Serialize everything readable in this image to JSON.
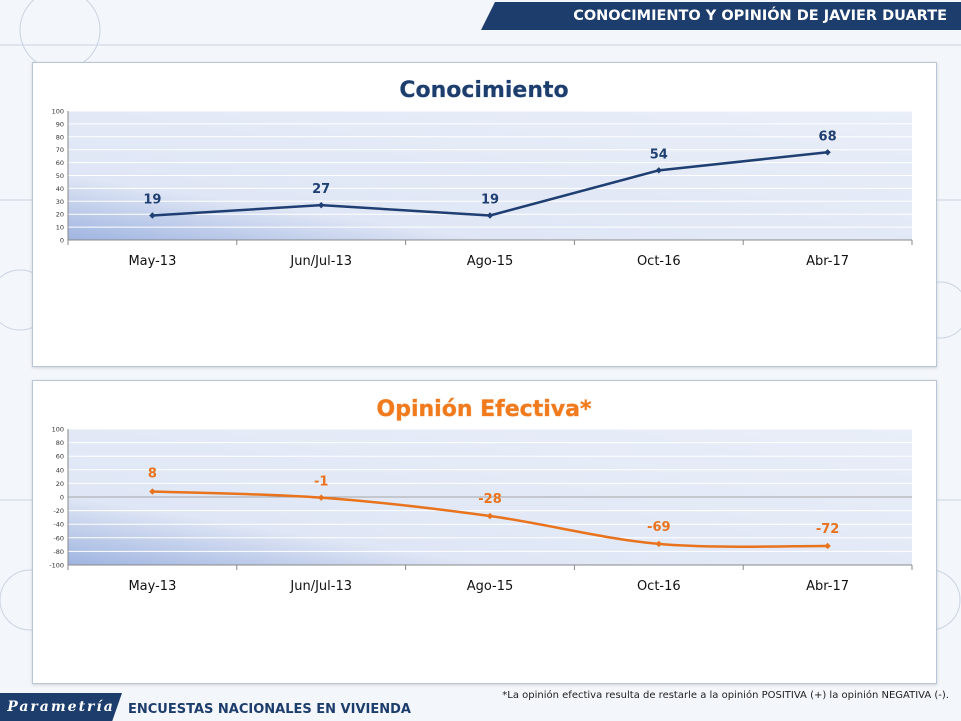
{
  "header": {
    "title": "CONOCIMIENTO Y OPINIÓN DE JAVIER DUARTE"
  },
  "footer": {
    "logo": "Parametría",
    "title": "ENCUESTAS NACIONALES EN VIVIENDA",
    "footnote": "*La opinión efectiva resulta de restarle a la opinión POSITIVA (+) la opinión NEGATIVA (-)."
  },
  "colors": {
    "navy": "#1d3d6c",
    "line1": "#1f3f73",
    "line2": "#e8731c",
    "title2": "#f07a1c"
  },
  "chart_data": [
    {
      "type": "line",
      "title": "Conocimiento",
      "categories": [
        "May-13",
        "Jun/Jul-13",
        "Ago-15",
        "Oct-16",
        "Abr-17"
      ],
      "series": [
        {
          "values": [
            19,
            27,
            19,
            54,
            68
          ]
        }
      ],
      "ylim": [
        0,
        100
      ],
      "yticks": [
        0,
        10,
        20,
        30,
        40,
        50,
        60,
        70,
        80,
        90,
        100
      ],
      "grid": true
    },
    {
      "type": "line",
      "title": "Opinión Efectiva*",
      "categories": [
        "May-13",
        "Jun/Jul-13",
        "Ago-15",
        "Oct-16",
        "Abr-17"
      ],
      "series": [
        {
          "values": [
            8,
            -1,
            -28,
            -69,
            -72
          ]
        }
      ],
      "ylim": [
        -100,
        100
      ],
      "yticks": [
        -100,
        -80,
        -60,
        -40,
        -20,
        0,
        20,
        40,
        60,
        80,
        100
      ],
      "grid": true
    }
  ]
}
